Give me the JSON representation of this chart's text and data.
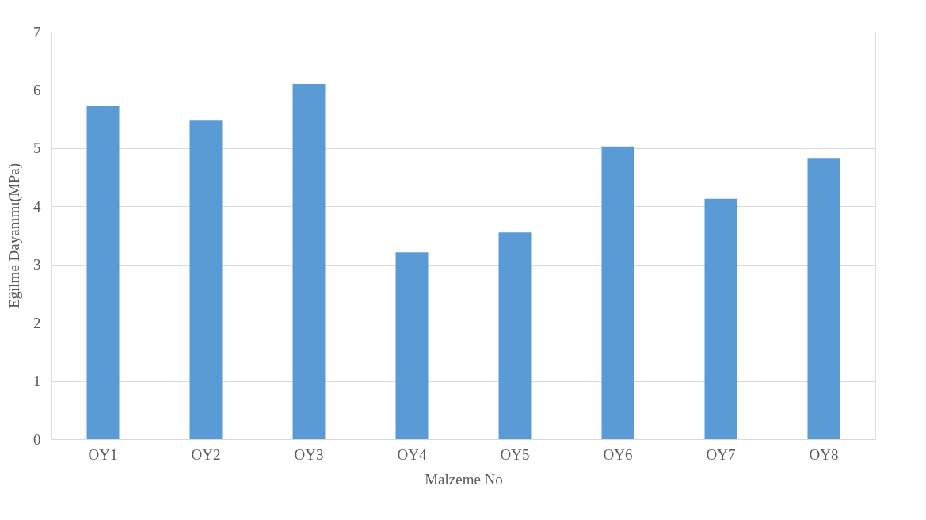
{
  "chart_data": {
    "type": "bar",
    "xlabel": "Malzeme No",
    "ylabel": "Eğilme Dayanımı(MPa)",
    "categories": [
      "OY1",
      "OY2",
      "OY3",
      "OY4",
      "OY5",
      "OY6",
      "OY7",
      "OY8"
    ],
    "values": [
      5.72,
      5.47,
      6.1,
      3.21,
      3.55,
      5.03,
      4.13,
      4.83
    ],
    "color": "#5b9bd5",
    "ylim": [
      0,
      7
    ],
    "yticks": [
      0,
      1,
      2,
      3,
      4,
      5,
      6,
      7
    ],
    "grid": "y",
    "legend": false
  }
}
